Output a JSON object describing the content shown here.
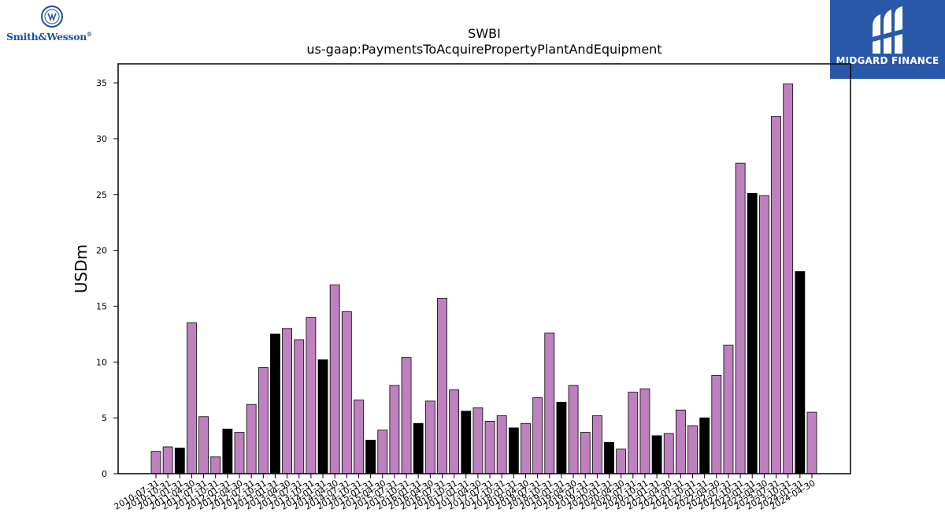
{
  "logos": {
    "left_text": "Smith&Wesson",
    "left_registered": "®",
    "right_text": "MIDGARD FINANCE"
  },
  "colors": {
    "bar_purple": "#bf80bf",
    "bar_black": "#000000",
    "brand_blue": "#2a58a8",
    "sw_blue": "#1f4fa0"
  },
  "chart_data": {
    "type": "bar",
    "title": "SWBI",
    "subtitle": "us-gaap:PaymentsToAcquirePropertyPlantAndEquipment",
    "ylabel": "USDm",
    "xlabel": "",
    "ylim": [
      0,
      36.7
    ],
    "yticks": [
      0,
      5,
      10,
      15,
      20,
      25,
      30,
      35
    ],
    "grid": false,
    "categories": [
      "2010-07-31",
      "2010-10-31",
      "2011-01-31",
      "2011-04-30",
      "2011-07-31",
      "2011-10-31",
      "2012-01-31",
      "2012-04-30",
      "2012-07-31",
      "2012-10-31",
      "2013-01-31",
      "2013-04-30",
      "2013-07-31",
      "2013-10-31",
      "2014-01-31",
      "2014-04-30",
      "2014-07-31",
      "2014-10-31",
      "2015-01-31",
      "2015-04-30",
      "2015-07-31",
      "2015-10-31",
      "2016-01-31",
      "2016-04-30",
      "2016-07-31",
      "2016-10-31",
      "2017-01-31",
      "2017-04-30",
      "2017-07-31",
      "2017-10-31",
      "2018-01-31",
      "2018-04-30",
      "2018-07-31",
      "2018-10-31",
      "2019-01-31",
      "2019-04-30",
      "2019-07-31",
      "2019-10-31",
      "2020-01-31",
      "2020-04-30",
      "2020-07-31",
      "2020-10-31",
      "2021-01-31",
      "2021-04-30",
      "2021-07-31",
      "2021-10-31",
      "2022-01-31",
      "2022-04-30",
      "2022-07-31",
      "2022-10-31",
      "2023-01-31",
      "2023-04-30",
      "2023-07-31",
      "2023-10-31",
      "2024-01-31",
      "2024-04-30"
    ],
    "values": [
      2.0,
      2.4,
      2.3,
      13.5,
      5.1,
      1.5,
      4.0,
      3.7,
      6.2,
      9.5,
      12.5,
      13.0,
      12.0,
      14.0,
      10.2,
      16.9,
      14.5,
      6.6,
      3.0,
      3.9,
      7.9,
      10.4,
      4.5,
      6.5,
      15.7,
      7.5,
      5.6,
      5.9,
      4.7,
      5.2,
      4.1,
      4.5,
      6.8,
      12.6,
      6.4,
      7.9,
      3.7,
      5.2,
      2.8,
      2.2,
      7.3,
      7.6,
      3.4,
      3.6,
      5.7,
      4.3,
      5.0,
      8.8,
      11.5,
      27.8,
      25.1,
      24.9,
      32.0,
      34.9,
      18.1,
      5.5
    ],
    "highlight": [
      false,
      false,
      true,
      false,
      false,
      false,
      true,
      false,
      false,
      false,
      true,
      false,
      false,
      false,
      true,
      false,
      false,
      false,
      true,
      false,
      false,
      false,
      true,
      false,
      false,
      false,
      true,
      false,
      false,
      false,
      true,
      false,
      false,
      false,
      true,
      false,
      false,
      false,
      true,
      false,
      false,
      false,
      true,
      false,
      false,
      false,
      true,
      false,
      false,
      false,
      true,
      false,
      false,
      false,
      true,
      false
    ]
  }
}
